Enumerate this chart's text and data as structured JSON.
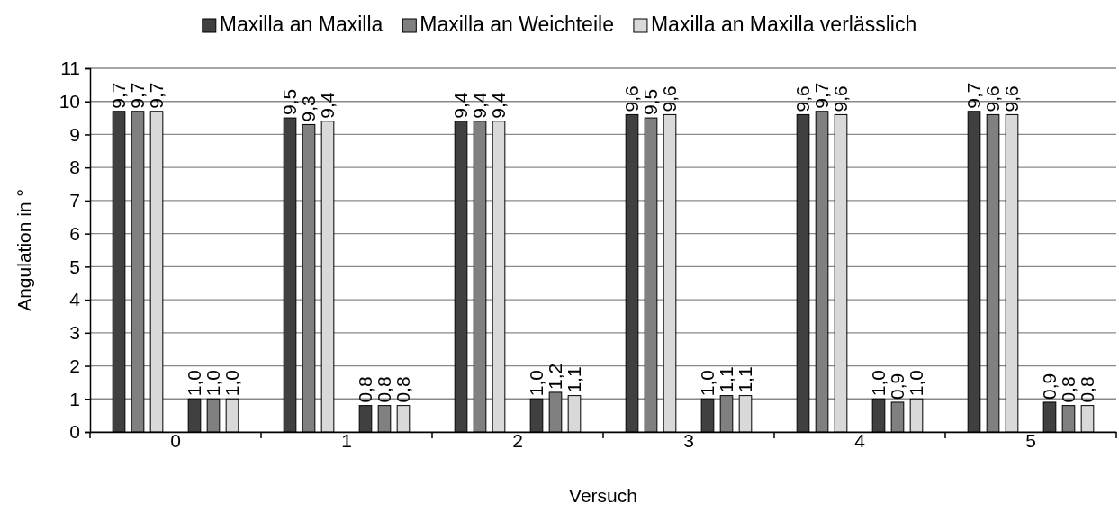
{
  "chart_data": {
    "type": "bar",
    "xlabel": "Versuch",
    "ylabel": "Angulation in °",
    "categories": [
      "0",
      "1",
      "2",
      "3",
      "4",
      "5"
    ],
    "series": [
      {
        "name": "Maxilla an Maxilla",
        "color": "#404040",
        "values": [
          9.7,
          9.5,
          9.4,
          9.6,
          9.6,
          9.7
        ],
        "value_labels": [
          "9,7",
          "9,5",
          "9,4",
          "9,6",
          "9,6",
          "9,7"
        ]
      },
      {
        "name": "Maxilla an Weichteile",
        "color": "#808080",
        "values": [
          9.7,
          9.3,
          9.4,
          9.5,
          9.7,
          9.6
        ],
        "value_labels": [
          "9,7",
          "9,3",
          "9,4",
          "9,5",
          "9,7",
          "9,6"
        ]
      },
      {
        "name": "Maxilla an Maxilla verlässlich",
        "color": "#d9d9d9",
        "values": [
          9.7,
          9.4,
          9.4,
          9.6,
          9.6,
          9.6
        ],
        "value_labels": [
          "9,7",
          "9,4",
          "9,4",
          "9,6",
          "9,6",
          "9,6"
        ]
      },
      {
        "color": "#404040",
        "values": [
          1.0,
          0.8,
          1.0,
          1.0,
          1.0,
          0.9
        ],
        "value_labels": [
          "1,0",
          "0,8",
          "1,0",
          "1,0",
          "1,0",
          "0,9"
        ]
      },
      {
        "color": "#808080",
        "values": [
          1.0,
          0.8,
          1.2,
          1.1,
          0.9,
          0.8
        ],
        "value_labels": [
          "1,0",
          "0,8",
          "1,2",
          "1,1",
          "0,9",
          "0,8"
        ]
      },
      {
        "color": "#d9d9d9",
        "values": [
          1.0,
          0.8,
          1.1,
          1.1,
          1.0,
          0.8
        ],
        "value_labels": [
          "1,0",
          "0,8",
          "1,1",
          "1,1",
          "1,0",
          "0,8"
        ]
      }
    ],
    "ylim": [
      0,
      11
    ],
    "yticks": [
      0,
      1,
      2,
      3,
      4,
      5,
      6,
      7,
      8,
      9,
      10,
      11
    ],
    "grid": "y",
    "legend": "top"
  }
}
